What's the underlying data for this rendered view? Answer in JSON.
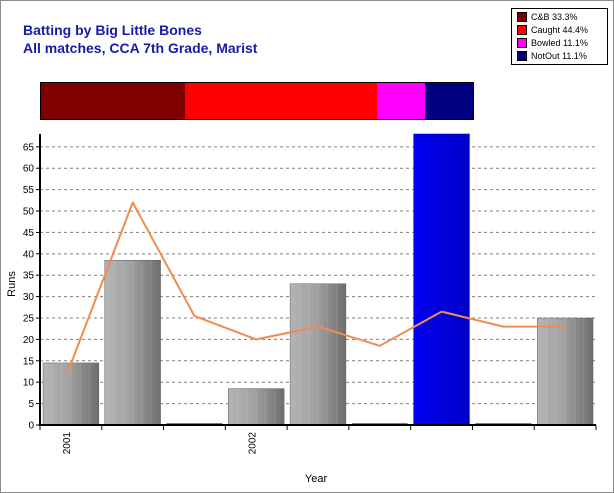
{
  "title": {
    "line1": "Batting by Big Little Bones",
    "line2": "All matches, CCA 7th Grade, Marist"
  },
  "legend": [
    {
      "label": "C&B 33.3%",
      "color": "#800000"
    },
    {
      "label": "Caught 44.4%",
      "color": "#ff0000"
    },
    {
      "label": "Bowled 11.1%",
      "color": "#ff00ff"
    },
    {
      "label": "NotOut 11.1%",
      "color": "#000080"
    }
  ],
  "dismissal_share": [
    {
      "name": "C&B",
      "percent": 33.3,
      "color": "#800000"
    },
    {
      "name": "Caught",
      "percent": 44.4,
      "color": "#ff0000"
    },
    {
      "name": "Bowled",
      "percent": 11.1,
      "color": "#ff00ff"
    },
    {
      "name": "NotOut",
      "percent": 11.1,
      "color": "#000080"
    }
  ],
  "chart_data": {
    "type": "bar",
    "xlabel": "Year",
    "ylabel": "Runs",
    "ylim": [
      0,
      68
    ],
    "yticks": [
      0,
      5,
      10,
      15,
      20,
      25,
      30,
      35,
      40,
      45,
      50,
      55,
      60,
      65
    ],
    "grid": true,
    "x_tick_labels": [
      {
        "index": 0,
        "label": "2001"
      },
      {
        "index": 3,
        "label": "2002"
      }
    ],
    "bars": [
      {
        "value": 14.5,
        "highlight": false
      },
      {
        "value": 38.5,
        "highlight": false
      },
      {
        "value": 0,
        "highlight": false
      },
      {
        "value": 8.5,
        "highlight": false
      },
      {
        "value": 33,
        "highlight": false
      },
      {
        "value": 0,
        "highlight": false
      },
      {
        "value": 68,
        "highlight": true
      },
      {
        "value": 0,
        "highlight": false
      },
      {
        "value": 25,
        "highlight": false
      }
    ],
    "series": [
      {
        "type": "line",
        "color": "#f08c50",
        "values": [
          12.5,
          52,
          25.5,
          20,
          23,
          18.5,
          26.5,
          23,
          23
        ]
      }
    ],
    "colors": {
      "bar": "#a0a0a0",
      "highlight_bar": "#0000ee",
      "zero_bar": "#4a9a4a",
      "grid": "#808080"
    }
  }
}
